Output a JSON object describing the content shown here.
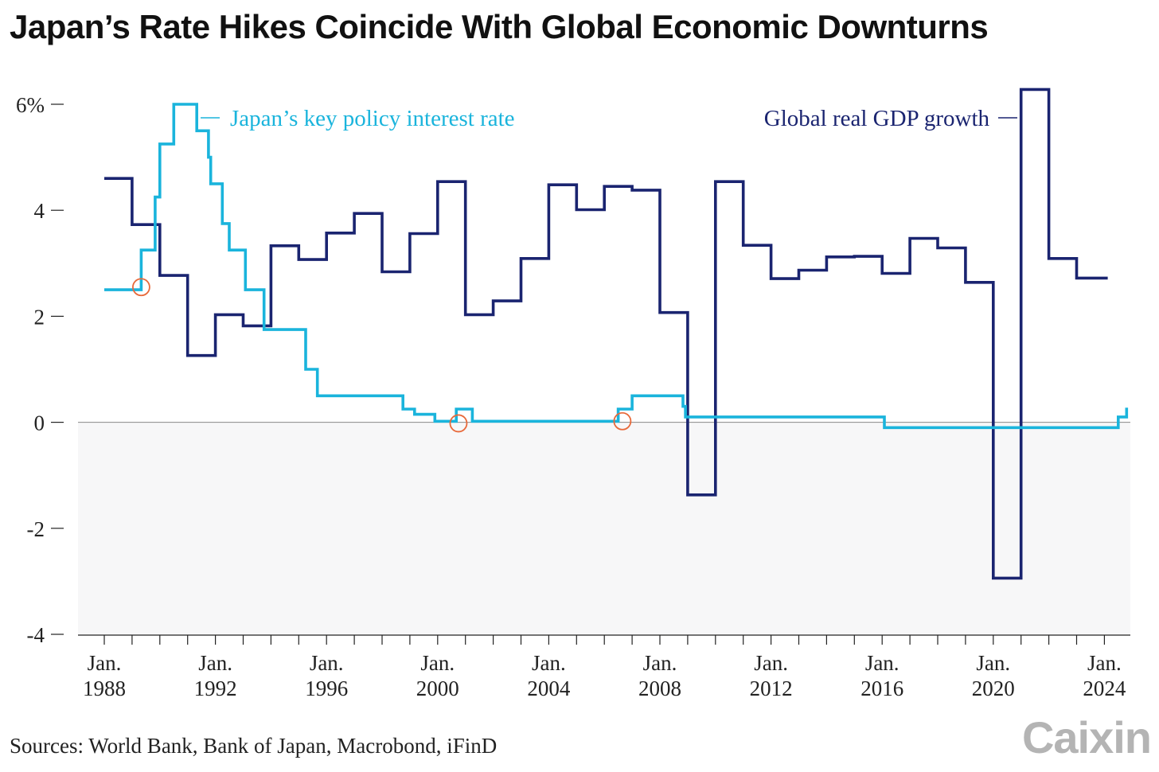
{
  "header": {
    "title": "Japan’s Rate Hikes Coincide With Global Economic Downturns"
  },
  "footer": {
    "source": "Sources: World Bank, Bank of Japan, Macrobond, iFinD",
    "logo": "Caixin"
  },
  "chart_data": {
    "type": "line",
    "title": "Japan’s Rate Hikes Coincide With Global Economic Downturns",
    "xlabel": "",
    "ylabel": "",
    "ylim": [
      -4,
      6
    ],
    "xlim": [
      1987.9,
      2025.0
    ],
    "y_ticks": [
      {
        "value": 6,
        "label": "6%"
      },
      {
        "value": 4,
        "label": "4"
      },
      {
        "value": 2,
        "label": "2"
      },
      {
        "value": 0,
        "label": "0"
      },
      {
        "value": -2,
        "label": "-2"
      },
      {
        "value": -4,
        "label": "-4"
      }
    ],
    "x_ticks": [
      {
        "value": 1988,
        "month": "Jan.",
        "year": "1988"
      },
      {
        "value": 1992,
        "month": "Jan.",
        "year": "1992"
      },
      {
        "value": 1996,
        "month": "Jan.",
        "year": "1996"
      },
      {
        "value": 2000,
        "month": "Jan.",
        "year": "2000"
      },
      {
        "value": 2004,
        "month": "Jan.",
        "year": "2004"
      },
      {
        "value": 2008,
        "month": "Jan.",
        "year": "2008"
      },
      {
        "value": 2012,
        "month": "Jan.",
        "year": "2012"
      },
      {
        "value": 2016,
        "month": "Jan.",
        "year": "2016"
      },
      {
        "value": 2020,
        "month": "Jan.",
        "year": "2020"
      },
      {
        "value": 2024,
        "month": "Jan.",
        "year": "2024"
      }
    ],
    "grid": false,
    "negative_region_shaded": true,
    "series": [
      {
        "name": "Japan’s key policy interest rate",
        "color": "#1ab4dc",
        "step": true,
        "points": [
          [
            1988.0,
            2.5
          ],
          [
            1989.33,
            3.25
          ],
          [
            1989.83,
            4.25
          ],
          [
            1990.0,
            5.25
          ],
          [
            1990.5,
            6.0
          ],
          [
            1991.33,
            5.5
          ],
          [
            1991.75,
            5.0
          ],
          [
            1991.83,
            4.5
          ],
          [
            1992.25,
            3.75
          ],
          [
            1992.5,
            3.25
          ],
          [
            1993.08,
            2.5
          ],
          [
            1993.75,
            1.75
          ],
          [
            1995.25,
            1.0
          ],
          [
            1995.67,
            0.5
          ],
          [
            1998.75,
            0.25
          ],
          [
            1999.17,
            0.15
          ],
          [
            1999.9,
            0.02
          ],
          [
            2000.67,
            0.25
          ],
          [
            2001.25,
            0.02
          ],
          [
            2006.5,
            0.25
          ],
          [
            2007.0,
            0.5
          ],
          [
            2008.83,
            0.3
          ],
          [
            2008.92,
            0.1
          ],
          [
            2016.08,
            -0.1
          ],
          [
            2024.5,
            0.1
          ],
          [
            2024.8,
            0.25
          ],
          [
            2024.85,
            0.25
          ]
        ]
      },
      {
        "name": "Global real GDP growth",
        "color": "#1a2470",
        "step": true,
        "points": [
          [
            1988.0,
            4.6
          ],
          [
            1989.0,
            3.73
          ],
          [
            1990.0,
            2.77
          ],
          [
            1991.0,
            1.26
          ],
          [
            1992.0,
            2.03
          ],
          [
            1993.0,
            1.82
          ],
          [
            1994.0,
            3.33
          ],
          [
            1995.0,
            3.07
          ],
          [
            1996.0,
            3.57
          ],
          [
            1997.0,
            3.94
          ],
          [
            1998.0,
            2.84
          ],
          [
            1999.0,
            3.56
          ],
          [
            2000.0,
            4.54
          ],
          [
            2001.0,
            2.03
          ],
          [
            2002.0,
            2.29
          ],
          [
            2003.0,
            3.09
          ],
          [
            2004.0,
            4.48
          ],
          [
            2005.0,
            4.01
          ],
          [
            2006.0,
            4.45
          ],
          [
            2007.0,
            4.38
          ],
          [
            2008.0,
            2.07
          ],
          [
            2009.0,
            -1.37
          ],
          [
            2010.0,
            4.54
          ],
          [
            2011.0,
            3.34
          ],
          [
            2012.0,
            2.71
          ],
          [
            2013.0,
            2.87
          ],
          [
            2014.0,
            3.12
          ],
          [
            2015.0,
            3.13
          ],
          [
            2016.0,
            2.81
          ],
          [
            2017.0,
            3.47
          ],
          [
            2018.0,
            3.29
          ],
          [
            2019.0,
            2.64
          ],
          [
            2020.0,
            -2.94
          ],
          [
            2021.0,
            6.28
          ],
          [
            2022.0,
            3.09
          ],
          [
            2023.0,
            2.72
          ],
          [
            2024.0,
            2.72
          ]
        ]
      }
    ],
    "legend": [
      {
        "text": "Japan’s key policy interest rate",
        "series": 0,
        "placement": "top-left"
      },
      {
        "text": "Global real GDP growth",
        "series": 1,
        "placement": "top-right"
      }
    ],
    "annotations": {
      "circles_color": "#e8693a",
      "rate_hike_markers": [
        [
          1989.33,
          2.55
        ],
        [
          2000.75,
          -0.02
        ],
        [
          2006.65,
          0.02
        ]
      ]
    }
  }
}
